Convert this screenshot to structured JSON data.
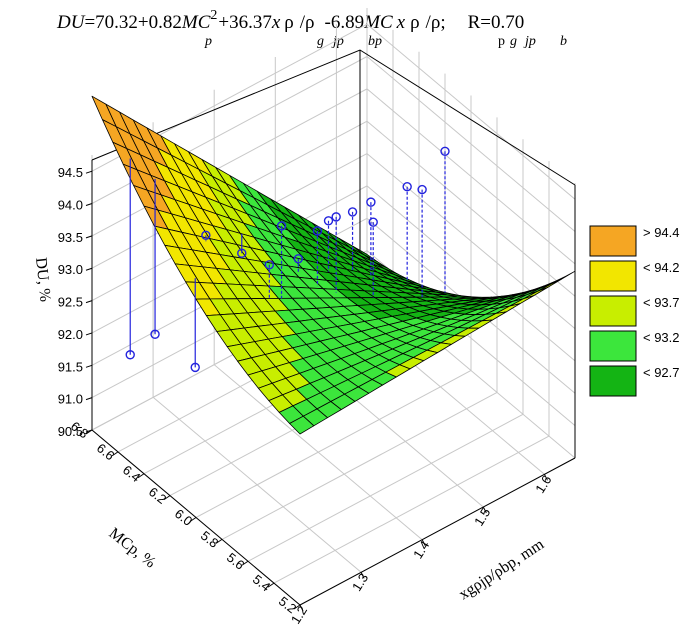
{
  "title": {
    "prefix": "DU",
    "part1": "=70.32+0.82",
    "mc": "MC",
    "sup2": "2",
    "part2": "+36.37",
    "x": "x",
    "rho": "ρ",
    "slash": "/ρ",
    "part3": "-6.89",
    "semi": ";",
    "r": "R=0.70",
    "sub_p": "p",
    "sub_g": "g",
    "sub_jp": "jp",
    "sub_bp": "bp",
    "sub_b": "b"
  },
  "axes": {
    "z_label": "DU, %",
    "y_label": "MCp, %",
    "x_label": "xgρjp/ρbp, mm"
  },
  "colors": {
    "gt_94_4": "#f5a623",
    "lt_94_2": "#f2e600",
    "lt_93_7": "#c8ee00",
    "lt_93_2": "#3ce63c",
    "lt_92_7": "#14b414",
    "points": "#2222dd"
  },
  "chart_data": {
    "type": "surface3d",
    "title": "DU=70.32+0.82MCp^2+36.37xgρjp/ρbp-6.89MCpxgρjp/ρb; R=0.70",
    "equation": {
      "intercept": 70.32,
      "c_mc2": 0.82,
      "c_x": 36.37,
      "c_mcx": -6.89,
      "R": 0.7
    },
    "x_axis": {
      "label": "xgρjp/ρbp, mm",
      "range": [
        1.2,
        1.65
      ],
      "ticks": [
        "1.2",
        "1.3",
        "1.4",
        "1.5",
        "1.6"
      ]
    },
    "y_axis": {
      "label": "MCp, %",
      "range": [
        5.2,
        6.8
      ],
      "ticks": [
        "5.2",
        "5.4",
        "5.6",
        "5.8",
        "6.0",
        "6.2",
        "6.4",
        "6.6",
        "6.8"
      ]
    },
    "z_axis": {
      "label": "DU, %",
      "range": [
        90.5,
        94.75
      ],
      "ticks": [
        "90.5",
        "91.0",
        "91.5",
        "92.0",
        "92.5",
        "93.0",
        "93.5",
        "94.0",
        "94.5"
      ]
    },
    "legend": [
      {
        "label": "> 94.4",
        "color": "#f5a623"
      },
      {
        "label": "< 94.2",
        "color": "#f2e600"
      },
      {
        "label": "< 93.7",
        "color": "#c8ee00"
      },
      {
        "label": "< 93.2",
        "color": "#3ce63c"
      },
      {
        "label": "< 92.7",
        "color": "#14b414"
      }
    ],
    "grid": true,
    "legend_position": "right",
    "observations": [
      {
        "x": 1.22,
        "mc": 6.6,
        "du": 91.9
      },
      {
        "x": 1.25,
        "mc": 6.55,
        "du": 92.15
      },
      {
        "x": 1.22,
        "mc": 6.1,
        "du": 92.55
      },
      {
        "x": 1.28,
        "mc": 6.3,
        "du": 93.95
      },
      {
        "x": 1.32,
        "mc": 6.0,
        "du": 93.8
      },
      {
        "x": 1.34,
        "mc": 6.0,
        "du": 94.3
      },
      {
        "x": 1.36,
        "mc": 6.4,
        "du": 93.1
      },
      {
        "x": 1.41,
        "mc": 6.2,
        "du": 93.1
      },
      {
        "x": 1.42,
        "mc": 6.1,
        "du": 93.65
      },
      {
        "x": 1.44,
        "mc": 6.05,
        "du": 93.85
      },
      {
        "x": 1.47,
        "mc": 6.25,
        "du": 93.3
      },
      {
        "x": 1.49,
        "mc": 6.0,
        "du": 93.6
      },
      {
        "x": 1.52,
        "mc": 6.3,
        "du": 93.1
      },
      {
        "x": 1.55,
        "mc": 6.3,
        "du": 93.1
      },
      {
        "x": 1.57,
        "mc": 6.0,
        "du": 93.7
      },
      {
        "x": 1.62,
        "mc": 6.35,
        "du": 92.9
      },
      {
        "x": 1.65,
        "mc": 6.2,
        "du": 93.55
      }
    ]
  }
}
